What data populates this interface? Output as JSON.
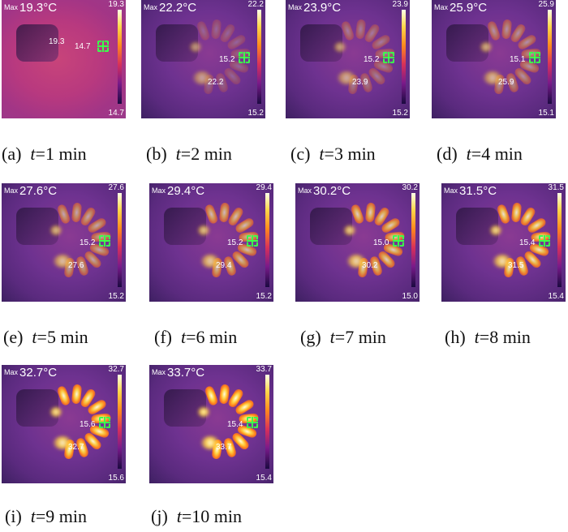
{
  "panels": [
    {
      "id": "a",
      "max": "19.3°C",
      "scale_max": "19.3",
      "scale_min": "14.7",
      "r1": "19.3",
      "r2": "14.7",
      "r3": "",
      "label_prefix": "(a)",
      "label_var": "t",
      "label_rest": "=1 min",
      "stage": 0
    },
    {
      "id": "b",
      "max": "22.2°C",
      "scale_max": "22.2",
      "scale_min": "15.2",
      "r1": "15.2",
      "r2": "22.2",
      "r3": "",
      "label_prefix": "(b)",
      "label_var": "t",
      "label_rest": "=2 min",
      "stage": 1
    },
    {
      "id": "c",
      "max": "23.9°C",
      "scale_max": "23.9",
      "scale_min": "15.2",
      "r1": "15.2",
      "r2": "23.9",
      "r3": "",
      "label_prefix": "(c)",
      "label_var": "t",
      "label_rest": "=3 min",
      "stage": 2
    },
    {
      "id": "d",
      "max": "25.9°C",
      "scale_max": "25.9",
      "scale_min": "15.1",
      "r1": "15.1",
      "r2": "25.9",
      "r3": "",
      "label_prefix": "(d)",
      "label_var": "t",
      "label_rest": "=4 min",
      "stage": 3
    },
    {
      "id": "e",
      "max": "27.6°C",
      "scale_max": "27.6",
      "scale_min": "15.2",
      "r1": "15.2",
      "r2": "27.6",
      "r3": "",
      "label_prefix": "(e)",
      "label_var": "t",
      "label_rest": "=5 min",
      "stage": 4
    },
    {
      "id": "f",
      "max": "29.4°C",
      "scale_max": "29.4",
      "scale_min": "15.2",
      "r1": "15.2",
      "r2": "29.4",
      "r3": "",
      "label_prefix": "(f)",
      "label_var": "t",
      "label_rest": "=6 min",
      "stage": 5
    },
    {
      "id": "g",
      "max": "30.2°C",
      "scale_max": "30.2",
      "scale_min": "15.0",
      "r1": "15.0",
      "r2": "30.2",
      "r3": "",
      "label_prefix": "(g)",
      "label_var": "t",
      "label_rest": "=7 min",
      "stage": 6
    },
    {
      "id": "h",
      "max": "31.5°C",
      "scale_max": "31.5",
      "scale_min": "15.4",
      "r1": "15.4",
      "r2": "31.5",
      "r3": "",
      "label_prefix": "(h)",
      "label_var": "t",
      "label_rest": "=8 min",
      "stage": 7
    },
    {
      "id": "i",
      "max": "32.7°C",
      "scale_max": "32.7",
      "scale_min": "15.6",
      "r1": "15.6",
      "r2": "32.7",
      "r3": "",
      "label_prefix": "(i)",
      "label_var": "t",
      "label_rest": "=9 min",
      "stage": 8
    },
    {
      "id": "j",
      "max": "33.7°C",
      "scale_max": "33.7",
      "scale_min": "15.4",
      "r1": "15.4",
      "r2": "33.7",
      "r3": "",
      "label_prefix": "(j)",
      "label_var": "t",
      "label_rest": "=10 min",
      "stage": 9
    }
  ],
  "max_prefix": "Max",
  "colors": {
    "bg_cold": "#7d3a8c",
    "bg_warm": "#c0407a",
    "hot": "#ffd040",
    "reticle": "#3cff4c"
  }
}
